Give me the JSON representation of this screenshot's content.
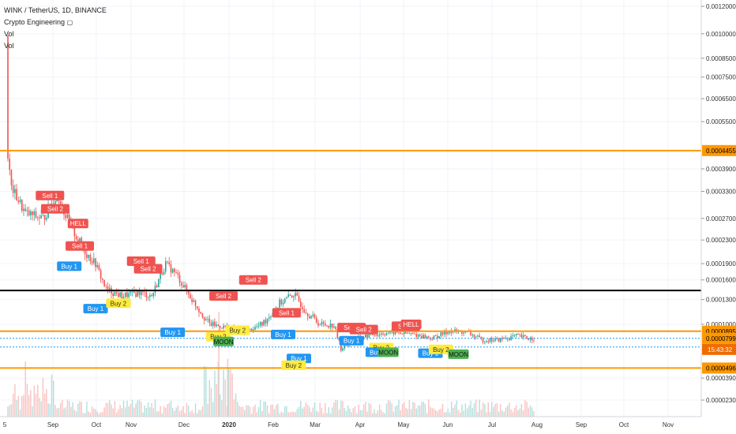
{
  "legend": {
    "symbol": "WINK / TetherUS, 1D, BINANCE",
    "indicator": "Crypto Engineering",
    "indicator_icon": "lock-icon",
    "vol1": "Vol",
    "vol2": "Vol"
  },
  "colors": {
    "up": "#26a69a",
    "down": "#ef5350",
    "orange_line": "#ff9800",
    "black_line": "#000000",
    "blue_dotted": "#2196f3",
    "sell_label": "#ef5350",
    "buy1_label": "#2196f3",
    "buy2_label": "#ffeb3b",
    "moon_label": "#4caf50"
  },
  "chart_data": {
    "type": "candlestick",
    "x_tick_labels": [
      "5",
      "Sep",
      "Oct",
      "Nov",
      "Dec",
      "2020",
      "Feb",
      "Mar",
      "Apr",
      "May",
      "Jun",
      "Jul",
      "Aug",
      "Sep",
      "Oct",
      "Nov"
    ],
    "y_tick_labels": [
      "0.0012000",
      "0.0010000",
      "0.0008500",
      "0.0007500",
      "0.0006500",
      "0.0005500",
      "0.0004455",
      "0.0003900",
      "0.0003300",
      "0.0002700",
      "0.0002300",
      "0.0001900",
      "0.0001600",
      "0.0001300",
      "0.0001000",
      "0.0000895",
      "0.0000799",
      "0.0000496",
      "0.0000390",
      "0.0000230"
    ],
    "y_ticks": [
      0.0012,
      0.001,
      0.00085,
      0.00075,
      0.00065,
      0.00055,
      0.00039,
      0.00033,
      0.00027,
      0.00023,
      0.00019,
      0.00016,
      0.00013,
      0.0001,
      3.9e-05,
      2.3e-05
    ],
    "scale": "log",
    "price_path": [
      [
        0,
        0.00099,
        0.00042
      ],
      [
        2,
        0.00036,
        0.00034
      ],
      [
        10,
        0.00031,
        0.00028
      ],
      [
        20,
        0.000295,
        0.00027
      ],
      [
        28,
        0.00031,
        0.00032
      ],
      [
        35,
        0.000285,
        0.00026
      ],
      [
        42,
        0.00023,
        0.00022
      ],
      [
        50,
        0.00022,
        0.00019
      ],
      [
        56,
        0.000175,
        0.000145
      ],
      [
        65,
        0.00014,
        0.000135
      ],
      [
        75,
        0.000145,
        0.00014
      ],
      [
        82,
        0.00013,
        0.000135
      ],
      [
        90,
        0.000165,
        0.00019
      ],
      [
        96,
        0.00019,
        0.00017
      ],
      [
        105,
        0.00016,
        0.00013
      ],
      [
        115,
        0.00011,
        0.0001
      ],
      [
        125,
        0.0001,
        9.5e-05
      ],
      [
        135,
        9.2e-05,
        8.8e-05
      ],
      [
        145,
        9.5e-05,
        0.0001
      ],
      [
        155,
        0.000115,
        0.000125
      ],
      [
        163,
        0.00013,
        0.000138
      ],
      [
        170,
        0.000125,
        0.000115
      ],
      [
        178,
        0.00011,
        0.0001
      ],
      [
        186,
        0.0001,
        9.8e-05
      ],
      [
        190,
        6.2e-05,
        6.8e-05
      ],
      [
        197,
        7.4e-05,
        7.8e-05
      ],
      [
        207,
        8.2e-05,
        8.5e-05
      ],
      [
        220,
        8.7e-05,
        8.8e-05
      ],
      [
        232,
        9e-05,
        8.5e-05
      ],
      [
        242,
        8.2e-05,
        8e-05
      ],
      [
        252,
        8.5e-05,
        9e-05
      ],
      [
        262,
        9.3e-05,
        8.8e-05
      ],
      [
        270,
        8.3e-05,
        7.8e-05
      ],
      [
        280,
        7.7e-05,
        7.8e-05
      ],
      [
        290,
        8e-05,
        8.3e-05
      ],
      [
        297,
        8.5e-05,
        8e-05
      ],
      [
        300,
        7.99e-05,
        7.99e-05
      ]
    ],
    "horizontal_lines": [
      {
        "price": 0.0004455,
        "color": "#ff9800",
        "label": "0.0004455"
      },
      {
        "price": 0.000143,
        "color": "#000000"
      },
      {
        "price": 8.95e-05,
        "color": "#ff9800",
        "label": "0.0000895"
      },
      {
        "price": 4.96e-05,
        "color": "#ff9800",
        "label": "0.0000496"
      }
    ],
    "current_price": {
      "price": 7.99e-05,
      "label": "0.0000799",
      "countdown": "15:43:32"
    },
    "markers": [
      {
        "text": "Sell 1",
        "type": "sell",
        "bar": 24,
        "price": 0.00032
      },
      {
        "text": "Sell 2",
        "type": "sell",
        "bar": 27,
        "price": 0.00029
      },
      {
        "text": "HELL",
        "type": "sell",
        "bar": 40,
        "price": 0.00026
      },
      {
        "text": "Sell 1",
        "type": "sell",
        "bar": 41,
        "price": 0.00022
      },
      {
        "text": "Buy 1",
        "type": "buy1",
        "bar": 35,
        "price": 0.000185
      },
      {
        "text": "Sell 1",
        "type": "sell",
        "bar": 76,
        "price": 0.000195
      },
      {
        "text": "Sell 2",
        "type": "sell",
        "bar": 80,
        "price": 0.00018
      },
      {
        "text": "Buy 1",
        "type": "buy1",
        "bar": 50,
        "price": 0.000118
      },
      {
        "text": "Buy 2",
        "type": "buy2",
        "bar": 63,
        "price": 0.000125
      },
      {
        "text": "Sell 2",
        "type": "sell",
        "bar": 140,
        "price": 0.00016
      },
      {
        "text": "Sell 2",
        "type": "sell",
        "bar": 123,
        "price": 0.000135
      },
      {
        "text": "Sell 1",
        "type": "sell",
        "bar": 159,
        "price": 0.000113
      },
      {
        "text": "Buy 1",
        "type": "buy1",
        "bar": 94,
        "price": 8.8e-05
      },
      {
        "text": "Buy 2",
        "type": "buy2",
        "bar": 120,
        "price": 8.2e-05
      },
      {
        "text": "MOON",
        "type": "moon",
        "bar": 123,
        "price": 7.6e-05
      },
      {
        "text": "Buy 2",
        "type": "buy2",
        "bar": 131,
        "price": 9.1e-05
      },
      {
        "text": "Buy 1",
        "type": "buy1",
        "bar": 157,
        "price": 8.5e-05
      },
      {
        "text": "Buy 1",
        "type": "buy1",
        "bar": 166,
        "price": 5.8e-05
      },
      {
        "text": "Buy 2",
        "type": "buy2",
        "bar": 163,
        "price": 5.2e-05
      },
      {
        "text": "Sell 2",
        "type": "sell",
        "bar": 196,
        "price": 9.5e-05
      },
      {
        "text": "Sell 2",
        "type": "sell",
        "bar": 203,
        "price": 9.2e-05
      },
      {
        "text": "Buy 1",
        "type": "buy1",
        "bar": 196,
        "price": 7.7e-05
      },
      {
        "text": "Buy 2",
        "type": "buy2",
        "bar": 213,
        "price": 6.9e-05
      },
      {
        "text": "Buy 1",
        "type": "buy1",
        "bar": 211,
        "price": 6.4e-05
      },
      {
        "text": "MOON",
        "type": "moon",
        "bar": 217,
        "price": 6.4e-05
      },
      {
        "text": "Sell 2",
        "type": "sell",
        "bar": 227,
        "price": 9.7e-05
      },
      {
        "text": "HELL",
        "type": "sell",
        "bar": 230,
        "price": 0.0001
      },
      {
        "text": "Buy 1",
        "type": "buy1",
        "bar": 241,
        "price": 6.3e-05
      },
      {
        "text": "Buy 2",
        "type": "buy2",
        "bar": 247,
        "price": 6.7e-05
      },
      {
        "text": "MOON",
        "type": "moon",
        "bar": 257,
        "price": 6.2e-05
      }
    ]
  }
}
